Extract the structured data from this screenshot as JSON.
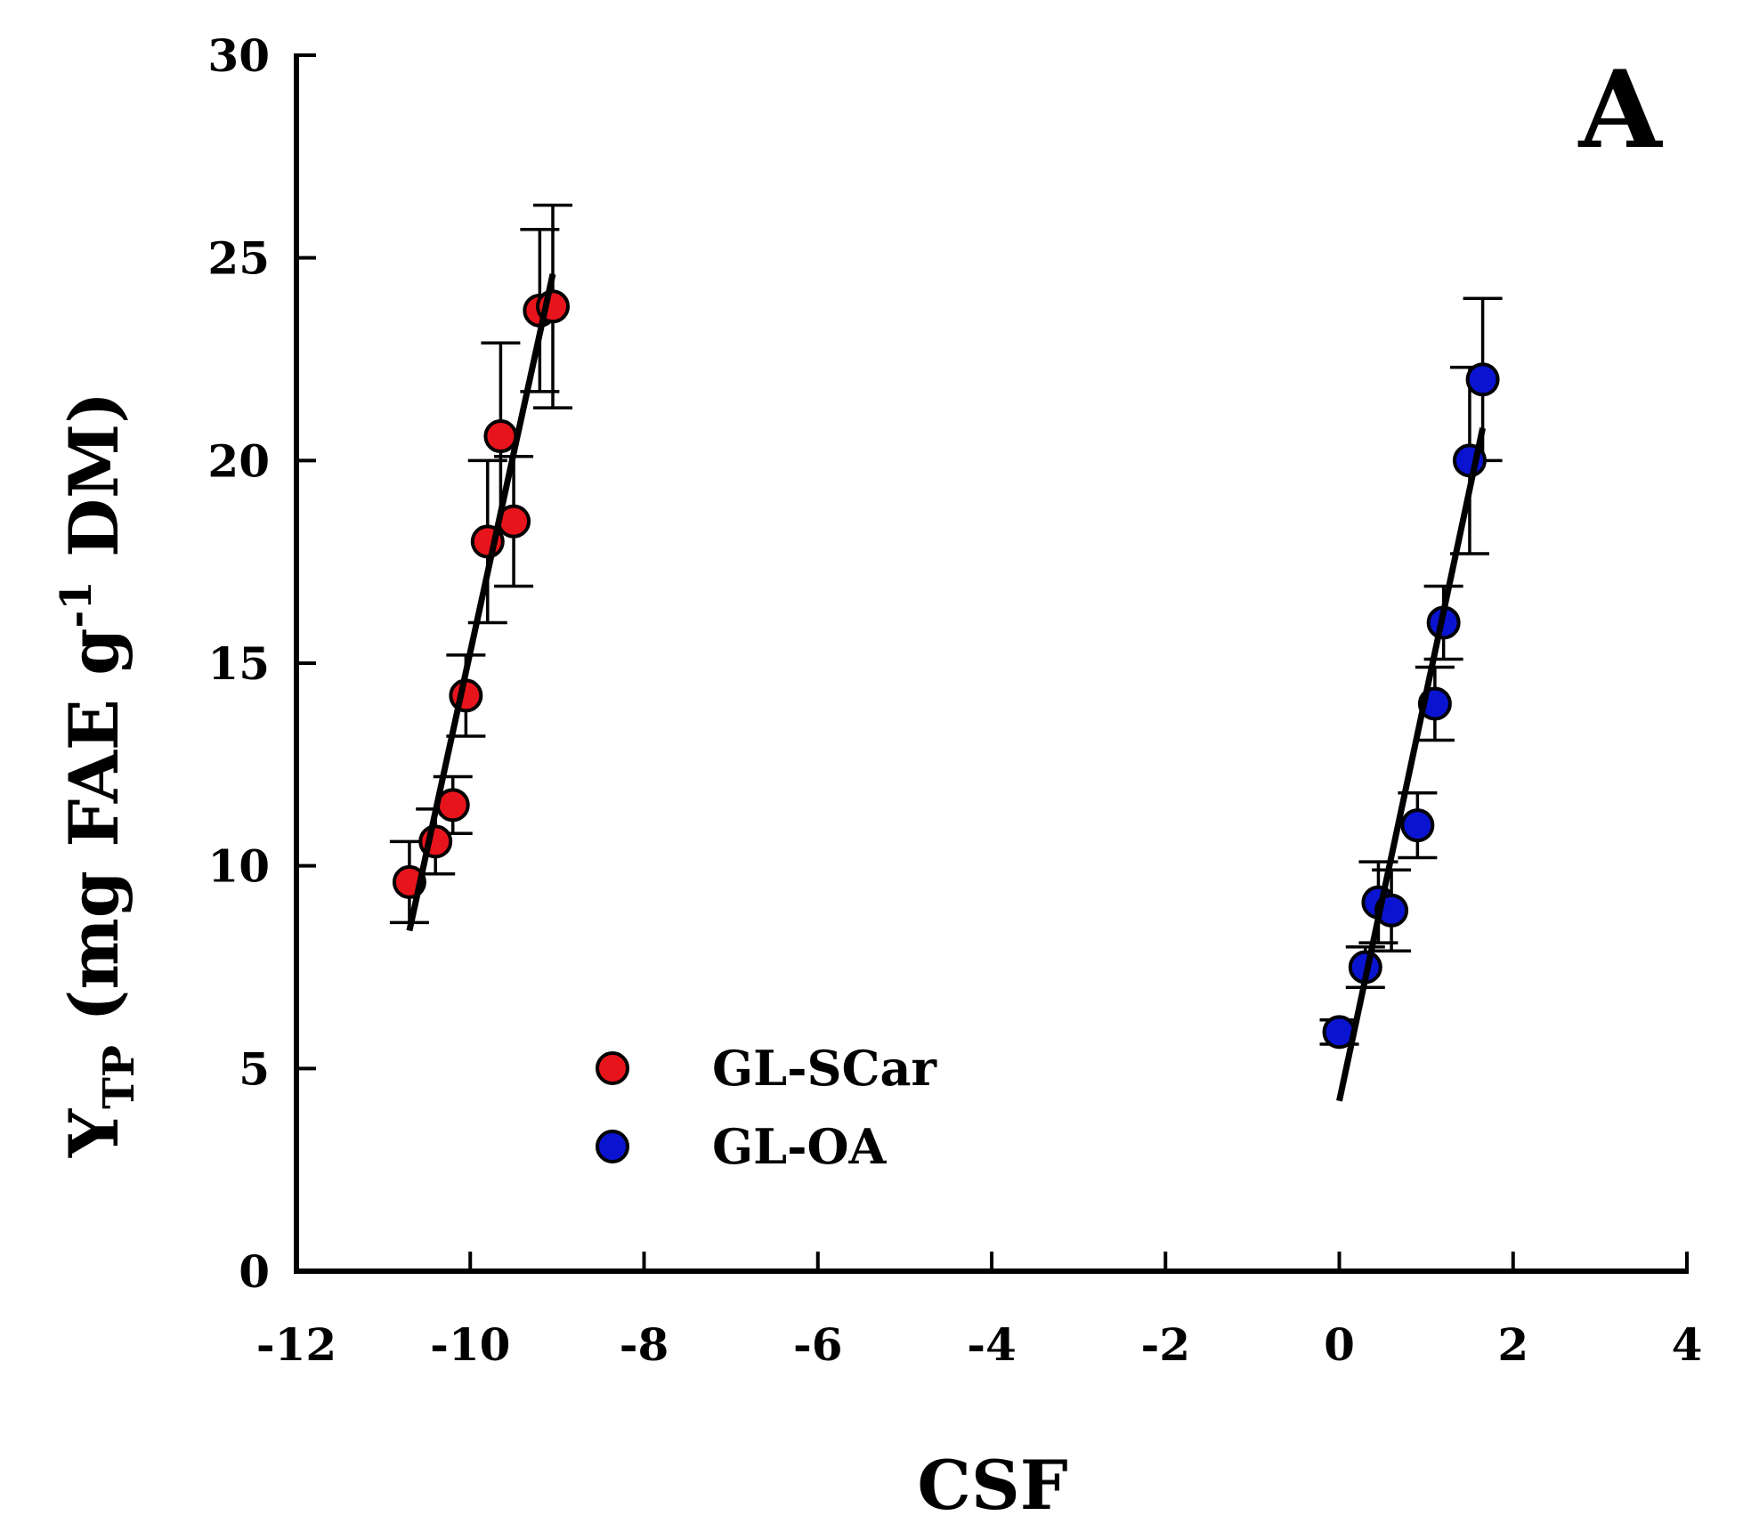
{
  "chart_data": {
    "type": "scatter",
    "panel_label": "A",
    "panel_label_color": "#D2691E",
    "xlabel": "CSF",
    "ylabel": {
      "main": "Y",
      "subscript": "TP",
      "before_superscript": " (mg FAE g",
      "superscript": "-1",
      "after_superscript": " DM)"
    },
    "xlim": [
      -12,
      4
    ],
    "ylim": [
      0,
      30
    ],
    "xticks": [
      "-12",
      "-10",
      "-8",
      "-6",
      "-4",
      "-2",
      "0",
      "2",
      "4"
    ],
    "yticks": [
      "0",
      "5",
      "10",
      "15",
      "20",
      "25",
      "30"
    ],
    "grid": false,
    "legend_position": "bottom-center",
    "series": [
      {
        "name": "GL-SCar",
        "color": "#E8141C",
        "points": [
          {
            "x": -10.7,
            "y": 9.6,
            "err": 1.0
          },
          {
            "x": -10.4,
            "y": 10.6,
            "err": 0.8
          },
          {
            "x": -10.2,
            "y": 11.5,
            "err": 0.7
          },
          {
            "x": -10.05,
            "y": 14.2,
            "err": 1.0
          },
          {
            "x": -9.8,
            "y": 18.0,
            "err": 2.0
          },
          {
            "x": -9.65,
            "y": 20.6,
            "err": 2.3
          },
          {
            "x": -9.5,
            "y": 18.5,
            "err": 1.6
          },
          {
            "x": -9.2,
            "y": 23.7,
            "err": 2.0
          },
          {
            "x": -9.05,
            "y": 23.8,
            "err": 2.5
          }
        ],
        "fit": {
          "x": [
            -10.7,
            -9.05
          ],
          "y": [
            8.4,
            24.6
          ]
        }
      },
      {
        "name": "GL-OA",
        "color": "#0A14D0",
        "points": [
          {
            "x": 0.0,
            "y": 5.9,
            "err": 0.3
          },
          {
            "x": 0.3,
            "y": 7.5,
            "err": 0.5
          },
          {
            "x": 0.45,
            "y": 9.1,
            "err": 1.0
          },
          {
            "x": 0.6,
            "y": 8.9,
            "err": 1.0
          },
          {
            "x": 0.9,
            "y": 11.0,
            "err": 0.8
          },
          {
            "x": 1.1,
            "y": 14.0,
            "err": 0.9
          },
          {
            "x": 1.2,
            "y": 16.0,
            "err": 0.9
          },
          {
            "x": 1.5,
            "y": 20.0,
            "err": 2.3
          },
          {
            "x": 1.65,
            "y": 22.0,
            "err": 2.0
          }
        ],
        "fit": {
          "x": [
            0.0,
            1.65
          ],
          "y": [
            4.2,
            20.8
          ]
        }
      }
    ]
  }
}
